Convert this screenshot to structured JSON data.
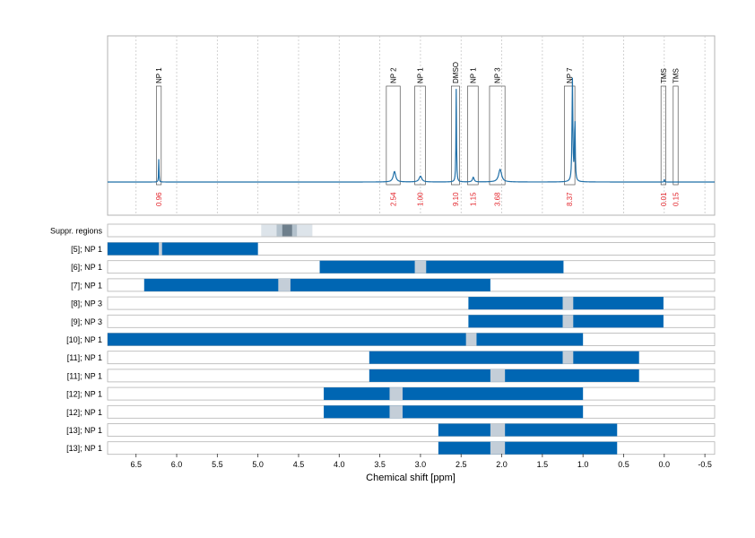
{
  "chart_data": {
    "type": "line",
    "xlabel": "Chemical shift [ppm]",
    "xlim": [
      6.85,
      -0.62
    ],
    "x_reversed": true,
    "x_ticks": [
      "6.5",
      "6.0",
      "5.5",
      "5.0",
      "4.5",
      "4.0",
      "3.5",
      "3.0",
      "2.5",
      "2.0",
      "1.5",
      "1.0",
      "0.5",
      "0.0",
      "-0.5"
    ],
    "x_tick_values": [
      6.5,
      6.0,
      5.5,
      5.0,
      4.5,
      4.0,
      3.5,
      3.0,
      2.5,
      2.0,
      1.5,
      1.0,
      0.5,
      0.0,
      -0.5
    ],
    "colors": {
      "spectrum": "#1f6fa8",
      "bar": "#0066b3",
      "gap": "#c4ced8",
      "integral": "#e3242b",
      "grid": "#c8c8c8",
      "frame": "#b3b3b3"
    },
    "spectrum": {
      "baseline": 0,
      "peaks": [
        {
          "x": 6.22,
          "height": 0.22,
          "width": 0.003
        },
        {
          "x": 3.32,
          "height": 0.1,
          "width": 0.018
        },
        {
          "x": 3.0,
          "height": 0.055,
          "width": 0.02
        },
        {
          "x": 2.56,
          "height": 0.88,
          "width": 0.004
        },
        {
          "x": 2.35,
          "height": 0.045,
          "width": 0.012
        },
        {
          "x": 2.02,
          "height": 0.12,
          "width": 0.022
        },
        {
          "x": 1.13,
          "height": 0.97,
          "width": 0.006
        },
        {
          "x": 1.1,
          "height": 0.62,
          "width": 0.005
        },
        {
          "x": 0.0,
          "height": 0.03,
          "width": 0.003
        }
      ]
    },
    "peak_annotations": [
      {
        "label": "NP 1",
        "x1": 6.25,
        "x2": 6.19,
        "integral": "0.96"
      },
      {
        "label": "NP 2",
        "x1": 3.42,
        "x2": 3.25,
        "integral": "2.54"
      },
      {
        "label": "NP 1",
        "x1": 3.07,
        "x2": 2.94,
        "integral": "1.00"
      },
      {
        "label": "DMSO",
        "x1": 2.62,
        "x2": 2.52,
        "integral": "9.10"
      },
      {
        "label": "NP 1",
        "x1": 2.42,
        "x2": 2.29,
        "integral": "1.15"
      },
      {
        "label": "NP 3",
        "x1": 2.15,
        "x2": 1.96,
        "integral": "3.68"
      },
      {
        "label": "NP 7",
        "x1": 1.23,
        "x2": 1.1,
        "integral": "8.37"
      },
      {
        "label": "TMS",
        "x1": 0.04,
        "x2": -0.02,
        "integral": "0.01"
      },
      {
        "label": "TMS",
        "x1": -0.11,
        "x2": -0.17,
        "integral": "0.15"
      }
    ],
    "suppressed_regions": {
      "label": "Suppr. regions",
      "bands": [
        {
          "x1": 4.96,
          "x2": 4.33,
          "level": 1
        },
        {
          "x1": 4.77,
          "x2": 4.52,
          "level": 2
        },
        {
          "x1": 4.7,
          "x2": 4.58,
          "level": 3
        }
      ]
    },
    "rows": [
      {
        "label": "[5]; NP 1",
        "x1": 6.85,
        "x2": 5.0,
        "gaps": [
          [
            6.22,
            6.18
          ]
        ]
      },
      {
        "label": "[6]; NP 1",
        "x1": 4.24,
        "x2": 1.24,
        "gaps": [
          [
            3.07,
            2.93
          ]
        ]
      },
      {
        "label": "[7]; NP 1",
        "x1": 6.4,
        "x2": 2.14,
        "gaps": [
          [
            4.75,
            4.6
          ]
        ]
      },
      {
        "label": "[8]; NP 3",
        "x1": 2.41,
        "x2": 0.01,
        "gaps": [
          [
            1.25,
            1.12
          ]
        ]
      },
      {
        "label": "[9]; NP 3",
        "x1": 2.41,
        "x2": 0.01,
        "gaps": [
          [
            1.25,
            1.12
          ]
        ]
      },
      {
        "label": "[10]; NP 1",
        "x1": 6.85,
        "x2": 1.0,
        "gaps": [
          [
            2.44,
            2.31
          ]
        ]
      },
      {
        "label": "[11]; NP 1",
        "x1": 3.63,
        "x2": 0.31,
        "gaps": [
          [
            1.25,
            1.12
          ]
        ]
      },
      {
        "label": "[11]; NP 1",
        "x1": 3.63,
        "x2": 0.31,
        "gaps": [
          [
            2.14,
            1.96
          ]
        ]
      },
      {
        "label": "[12]; NP 1",
        "x1": 4.19,
        "x2": 1.0,
        "gaps": [
          [
            3.38,
            3.22
          ]
        ]
      },
      {
        "label": "[12]; NP 1",
        "x1": 4.19,
        "x2": 1.0,
        "gaps": [
          [
            3.38,
            3.22
          ]
        ]
      },
      {
        "label": "[13]; NP 1",
        "x1": 2.78,
        "x2": 0.58,
        "gaps": [
          [
            2.14,
            1.96
          ]
        ]
      },
      {
        "label": "[13]; NP 1",
        "x1": 2.78,
        "x2": 0.58,
        "gaps": [
          [
            2.14,
            1.96
          ]
        ]
      }
    ]
  }
}
